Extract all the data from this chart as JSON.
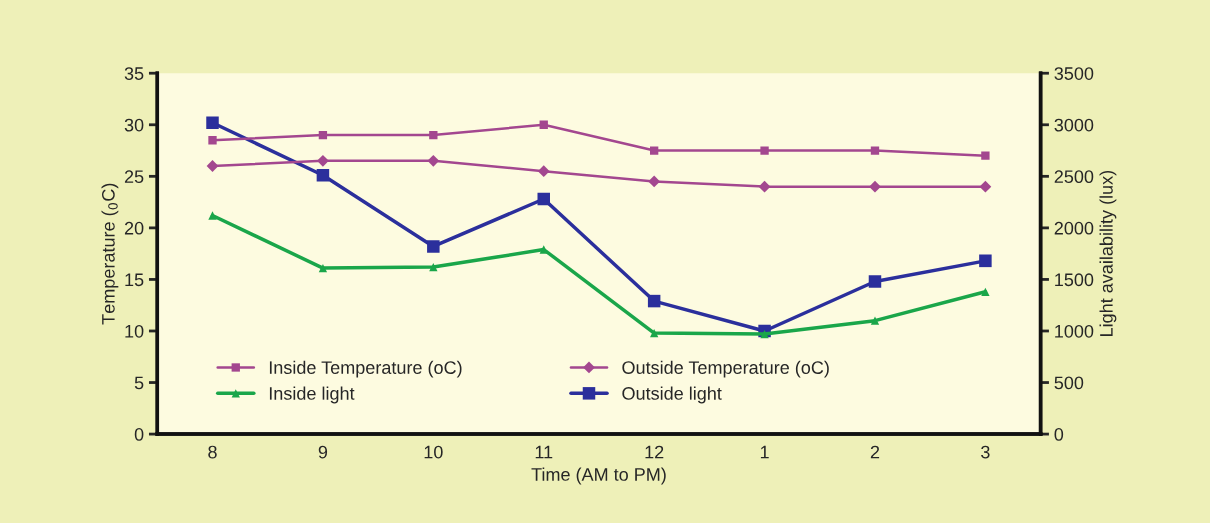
{
  "chart_data": {
    "type": "line",
    "xlabel": "Time (AM to PM)",
    "ylabel": "Temperature ($_{0}$C)",
    "y2label": "Light availability (lux)",
    "categories": [
      "8",
      "9",
      "10",
      "11",
      "12",
      "1",
      "2",
      "3"
    ],
    "ylim": [
      0,
      35
    ],
    "yticks": [
      0,
      5,
      10,
      15,
      20,
      25,
      30,
      35
    ],
    "y2lim": [
      0,
      3500
    ],
    "y2ticks": [
      0,
      500,
      1000,
      1500,
      2000,
      2500,
      3000,
      3500
    ],
    "grid": false,
    "legend": "bottom left",
    "series": [
      {
        "name": "Inside Temperature (oC)",
        "color": "#a3478f",
        "marker": "square",
        "values": [
          28.5,
          29,
          29,
          30,
          27.5,
          27.5,
          27.5,
          27
        ]
      },
      {
        "name": "Outside Temperature (oC)",
        "color": "#a3478f",
        "marker": "diamond",
        "values": [
          26,
          26.5,
          26.5,
          25.5,
          24.5,
          24,
          24,
          24
        ]
      },
      {
        "name": "Inside light",
        "color": "#1aa64a",
        "marker": "triangle",
        "axis": "y2",
        "values": [
          2120,
          1610,
          1620,
          1790,
          980,
          970,
          1100,
          1380
        ]
      },
      {
        "name": "Outside light",
        "color": "#2b2f9c",
        "marker": "square",
        "axis": "y2",
        "values": [
          3020,
          2510,
          1820,
          2280,
          1290,
          1000,
          1480,
          1680
        ]
      }
    ]
  }
}
